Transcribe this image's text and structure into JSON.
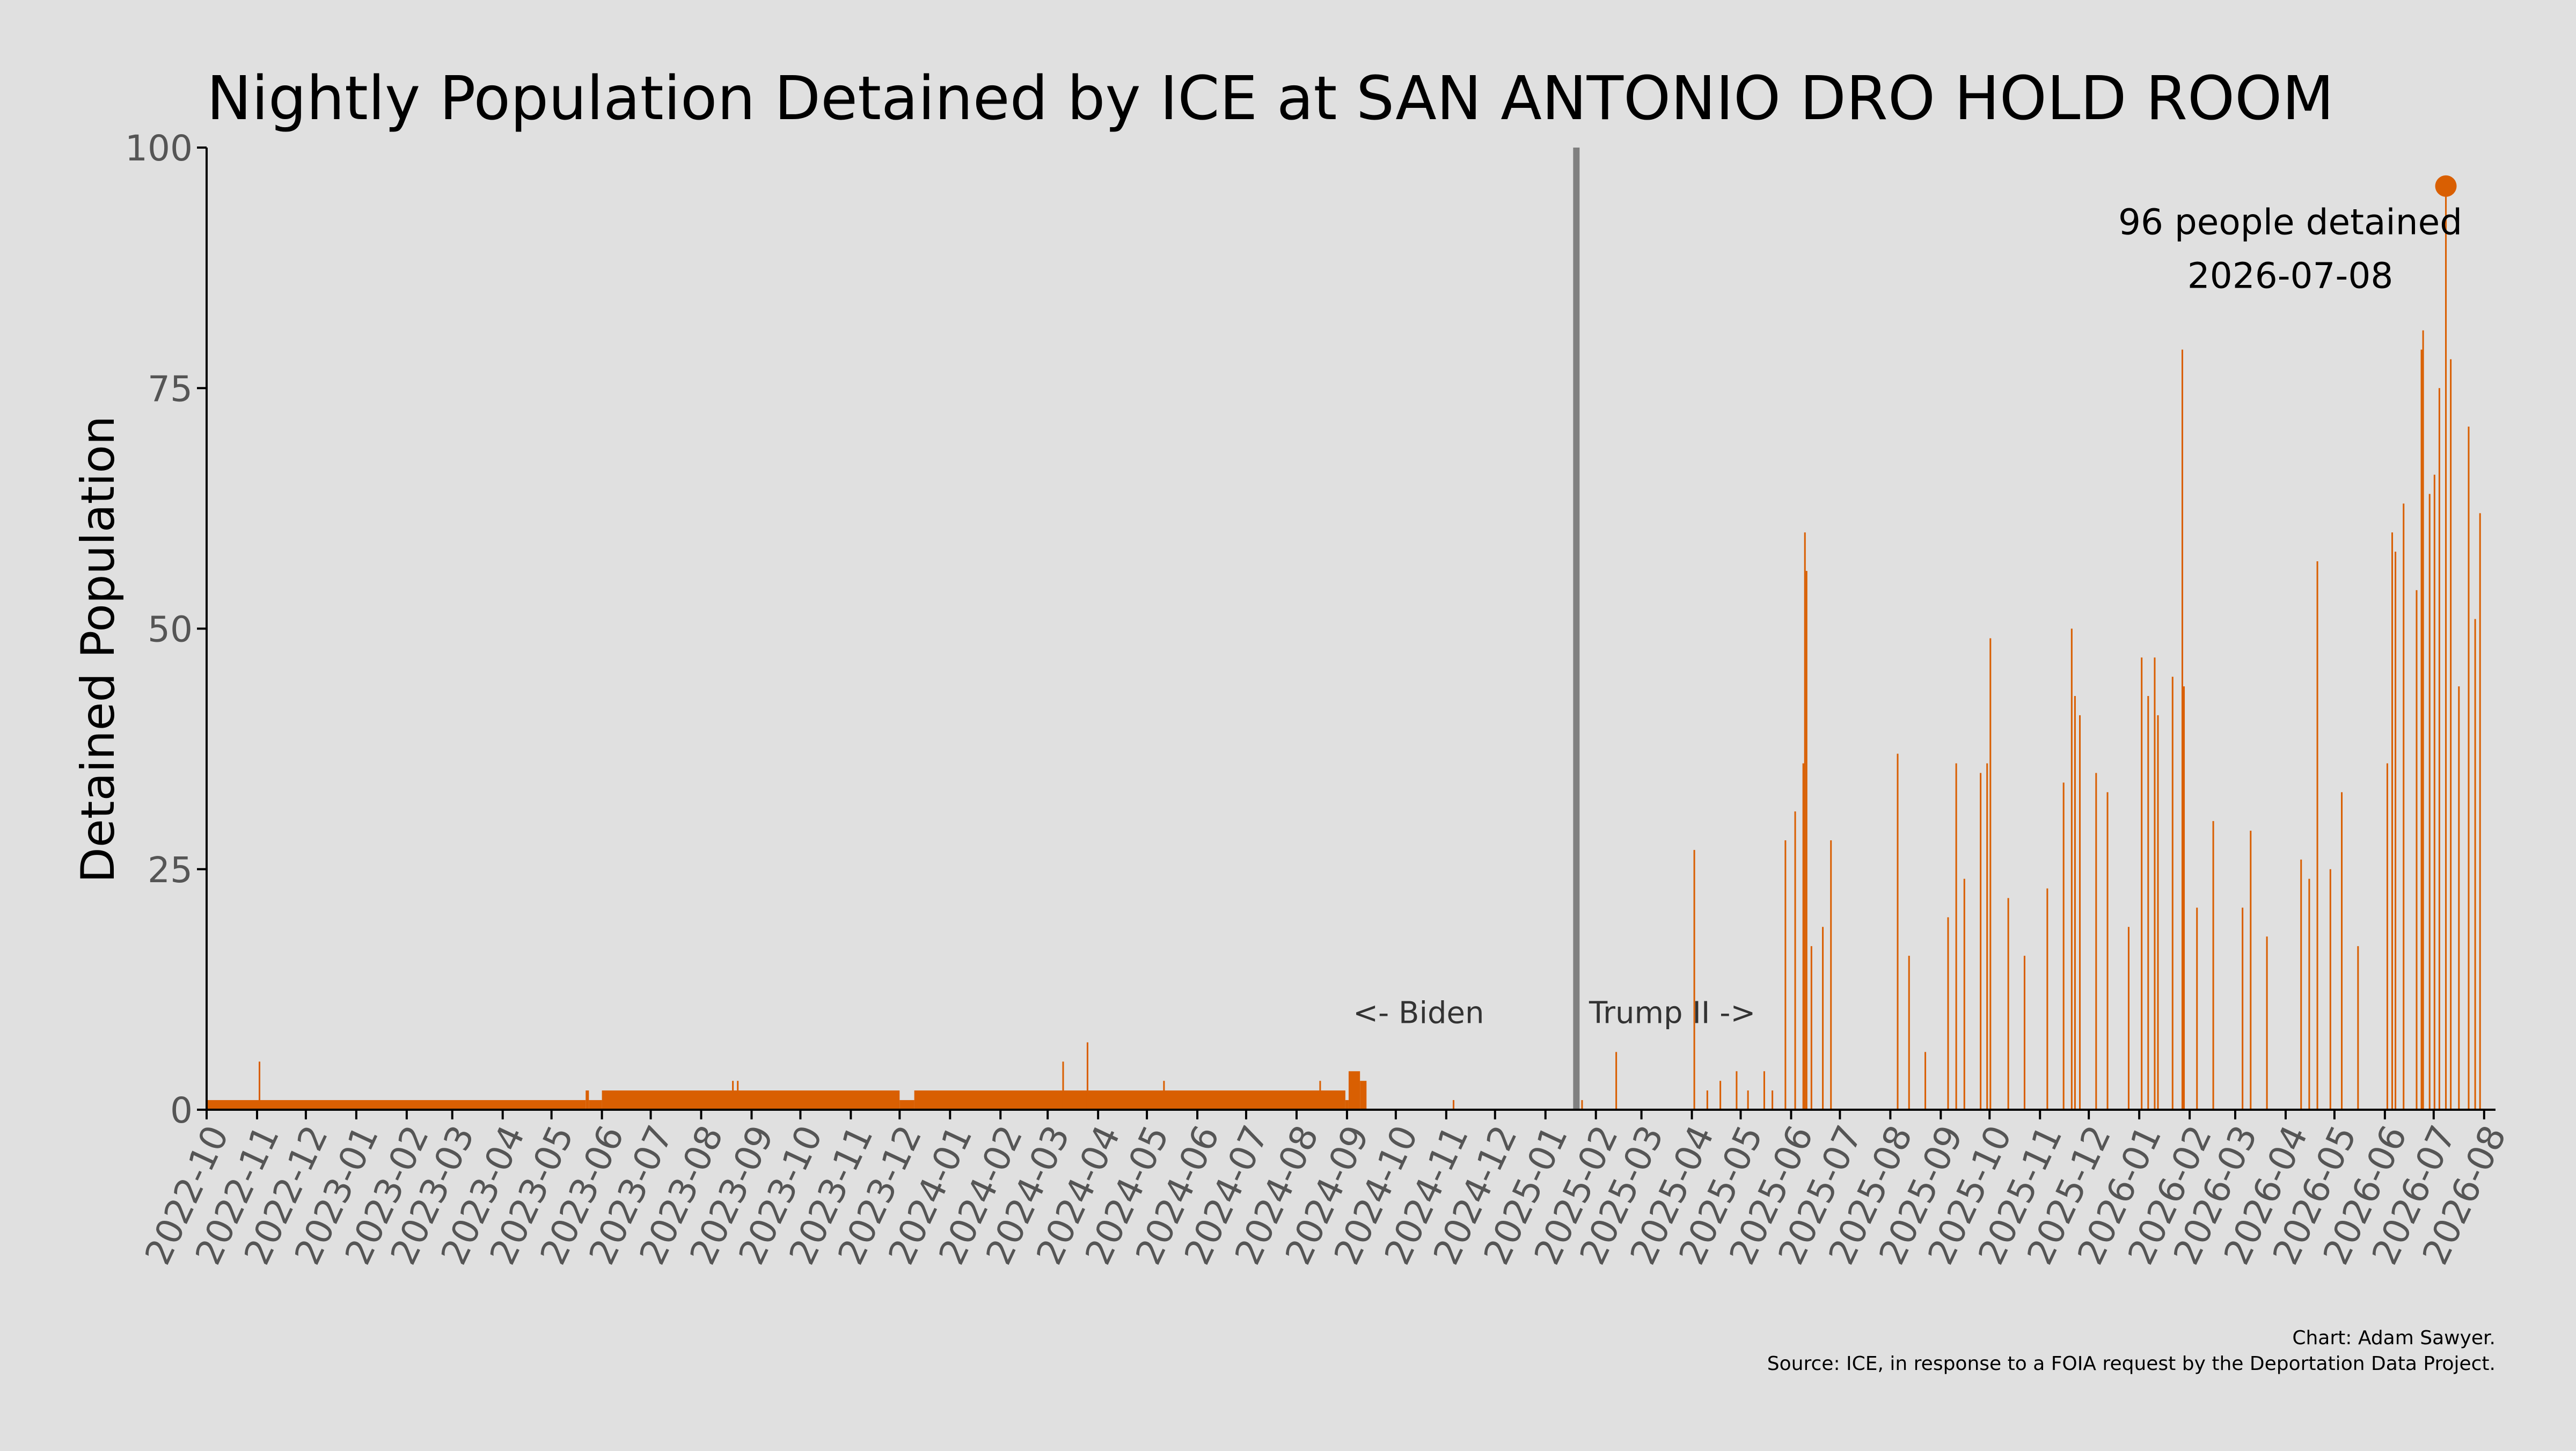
{
  "chart_data": {
    "type": "bar",
    "title": "Nightly Population Detained by ICE at SAN ANTONIO DRO HOLD ROOM",
    "ylabel": "Detained Population",
    "xlabel": "",
    "ylim": [
      0,
      100
    ],
    "yticks": [
      0,
      25,
      50,
      75,
      100
    ],
    "xlim": [
      "2022-10-01",
      "2026-08-08"
    ],
    "x_tick_labels": [
      "2022-10",
      "2022-11",
      "2022-12",
      "2023-01",
      "2023-02",
      "2023-03",
      "2023-04",
      "2023-05",
      "2023-06",
      "2023-07",
      "2023-08",
      "2023-09",
      "2023-10",
      "2023-11",
      "2023-12",
      "2024-01",
      "2024-02",
      "2024-03",
      "2024-04",
      "2024-05",
      "2024-06",
      "2024-07",
      "2024-08",
      "2024-09",
      "2024-10",
      "2024-11",
      "2024-12",
      "2025-01",
      "2025-02",
      "2025-03",
      "2025-04",
      "2025-05",
      "2025-06",
      "2025-07",
      "2025-08",
      "2025-09",
      "2025-10",
      "2025-11",
      "2025-12",
      "2026-01",
      "2026-02",
      "2026-03",
      "2026-04",
      "2026-05",
      "2026-06",
      "2026-07",
      "2026-08"
    ],
    "bar_color": "#d95f02",
    "grid": false,
    "series": [
      {
        "values_by_period": [
          {
            "start": "2022-10-01",
            "end": "2023-05-21",
            "value": 1
          },
          {
            "start": "2023-05-22",
            "end": "2023-05-23",
            "value": 2
          },
          {
            "start": "2023-05-24",
            "end": "2023-05-31",
            "value": 1
          },
          {
            "start": "2023-06-01",
            "end": "2023-11-30",
            "value": 2
          },
          {
            "start": "2023-12-01",
            "end": "2023-12-09",
            "value": 1
          },
          {
            "start": "2023-12-10",
            "end": "2024-08-30",
            "value": 2
          },
          {
            "start": "2024-08-31",
            "end": "2024-09-01",
            "value": 1
          },
          {
            "start": "2024-09-02",
            "end": "2024-09-08",
            "value": 4
          },
          {
            "start": "2024-09-09",
            "end": "2024-09-12",
            "value": 3
          }
        ],
        "spikes": [
          {
            "x": "2022-11-02",
            "value": 5
          },
          {
            "x": "2023-08-20",
            "value": 3
          },
          {
            "x": "2023-08-23",
            "value": 3
          },
          {
            "x": "2024-03-10",
            "value": 5
          },
          {
            "x": "2024-03-25",
            "value": 7
          },
          {
            "x": "2024-05-11",
            "value": 3
          },
          {
            "x": "2024-08-15",
            "value": 3
          },
          {
            "x": "2024-11-05",
            "value": 1
          },
          {
            "x": "2025-01-23",
            "value": 1
          },
          {
            "x": "2025-02-13",
            "value": 6
          },
          {
            "x": "2025-04-02",
            "value": 27
          },
          {
            "x": "2025-04-10",
            "value": 2
          },
          {
            "x": "2025-04-18",
            "value": 3
          },
          {
            "x": "2025-04-28",
            "value": 4
          },
          {
            "x": "2025-05-05",
            "value": 2
          },
          {
            "x": "2025-05-15",
            "value": 4
          },
          {
            "x": "2025-05-20",
            "value": 2
          },
          {
            "x": "2025-05-28",
            "value": 28
          },
          {
            "x": "2025-06-03",
            "value": 31
          },
          {
            "x": "2025-06-08",
            "value": 36
          },
          {
            "x": "2025-06-09",
            "value": 60
          },
          {
            "x": "2025-06-10",
            "value": 56
          },
          {
            "x": "2025-06-13",
            "value": 17
          },
          {
            "x": "2025-06-20",
            "value": 19
          },
          {
            "x": "2025-06-25",
            "value": 28
          },
          {
            "x": "2025-08-05",
            "value": 37
          },
          {
            "x": "2025-08-12",
            "value": 16
          },
          {
            "x": "2025-08-22",
            "value": 6
          },
          {
            "x": "2025-09-05",
            "value": 20
          },
          {
            "x": "2025-09-10",
            "value": 36
          },
          {
            "x": "2025-09-15",
            "value": 24
          },
          {
            "x": "2025-09-25",
            "value": 35
          },
          {
            "x": "2025-09-29",
            "value": 36
          },
          {
            "x": "2025-10-01",
            "value": 49
          },
          {
            "x": "2025-10-12",
            "value": 22
          },
          {
            "x": "2025-10-22",
            "value": 16
          },
          {
            "x": "2025-11-05",
            "value": 23
          },
          {
            "x": "2025-11-15",
            "value": 34
          },
          {
            "x": "2025-11-20",
            "value": 50
          },
          {
            "x": "2025-11-22",
            "value": 43
          },
          {
            "x": "2025-11-25",
            "value": 41
          },
          {
            "x": "2025-12-05",
            "value": 35
          },
          {
            "x": "2025-12-12",
            "value": 33
          },
          {
            "x": "2025-12-25",
            "value": 19
          },
          {
            "x": "2026-01-02",
            "value": 47
          },
          {
            "x": "2026-01-06",
            "value": 43
          },
          {
            "x": "2026-01-10",
            "value": 47
          },
          {
            "x": "2026-01-12",
            "value": 41
          },
          {
            "x": "2026-01-21",
            "value": 45
          },
          {
            "x": "2026-01-27",
            "value": 79
          },
          {
            "x": "2026-01-28",
            "value": 44
          },
          {
            "x": "2026-02-05",
            "value": 21
          },
          {
            "x": "2026-02-15",
            "value": 30
          },
          {
            "x": "2026-03-05",
            "value": 21
          },
          {
            "x": "2026-03-10",
            "value": 29
          },
          {
            "x": "2026-03-20",
            "value": 18
          },
          {
            "x": "2026-04-10",
            "value": 26
          },
          {
            "x": "2026-04-15",
            "value": 24
          },
          {
            "x": "2026-04-20",
            "value": 57
          },
          {
            "x": "2026-04-28",
            "value": 25
          },
          {
            "x": "2026-05-05",
            "value": 33
          },
          {
            "x": "2026-05-15",
            "value": 17
          },
          {
            "x": "2026-06-02",
            "value": 36
          },
          {
            "x": "2026-06-05",
            "value": 60
          },
          {
            "x": "2026-06-07",
            "value": 58
          },
          {
            "x": "2026-06-12",
            "value": 63
          },
          {
            "x": "2026-06-20",
            "value": 54
          },
          {
            "x": "2026-06-23",
            "value": 79
          },
          {
            "x": "2026-06-24",
            "value": 81
          },
          {
            "x": "2026-06-28",
            "value": 64
          },
          {
            "x": "2026-07-01",
            "value": 66
          },
          {
            "x": "2026-07-04",
            "value": 75
          },
          {
            "x": "2026-07-08",
            "value": 96
          },
          {
            "x": "2026-07-11",
            "value": 78
          },
          {
            "x": "2026-07-16",
            "value": 44
          },
          {
            "x": "2026-07-22",
            "value": 71
          },
          {
            "x": "2026-07-26",
            "value": 51
          },
          {
            "x": "2026-07-29",
            "value": 62
          }
        ]
      }
    ],
    "reference_line": {
      "x": "2025-01-20"
    },
    "annotations": [
      {
        "text": "<- Biden",
        "x": "2024-10-15",
        "y": 10
      },
      {
        "text": "Trump II ->",
        "x": "2025-03-20",
        "y": 10
      }
    ],
    "max_point": {
      "x": "2026-07-08",
      "value": 96,
      "label_line1": "96 people detained",
      "label_line2": "2026-07-08"
    },
    "credit_line1": "Chart: Adam Sawyer.",
    "credit_line2": "Source: ICE, in response to a FOIA request by the Deportation Data Project."
  }
}
